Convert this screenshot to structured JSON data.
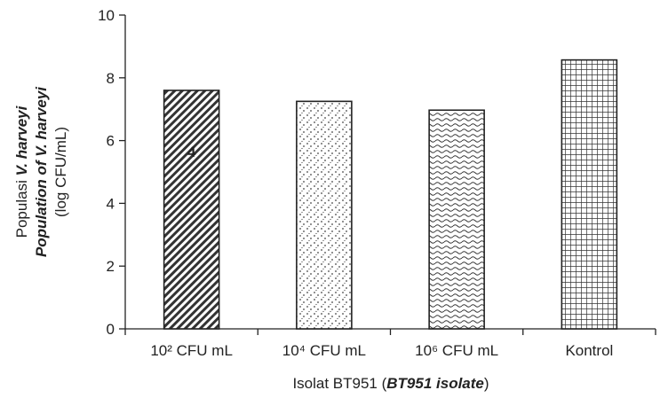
{
  "chart_data": {
    "type": "bar",
    "categories": [
      "10² CFU mL",
      "10⁴ CFU mL",
      "10⁶ CFU mL",
      "Kontrol"
    ],
    "values": [
      7.6,
      7.25,
      6.97,
      8.57
    ],
    "data_labels": [
      "4",
      "",
      "",
      ""
    ],
    "ylim": [
      0,
      10
    ],
    "yticks": [
      0,
      2,
      4,
      6,
      8,
      10
    ],
    "grid": false,
    "legend": "none",
    "xlabel": {
      "plain": "Isolat BT951 (",
      "italic": "BT951 isolate",
      "close": ")"
    },
    "ylabel": {
      "line1_plain": "Populasi ",
      "line1_italic": "V. harveyi",
      "line2": "Population of V. harveyi",
      "line3": "(log CFU/mL)"
    },
    "bar_patterns": [
      "diagonal-hatch",
      "dots",
      "waves",
      "grid"
    ],
    "colors": {
      "bar_stroke": "#222222",
      "pattern": "#333333",
      "fill": "#ffffff"
    }
  }
}
